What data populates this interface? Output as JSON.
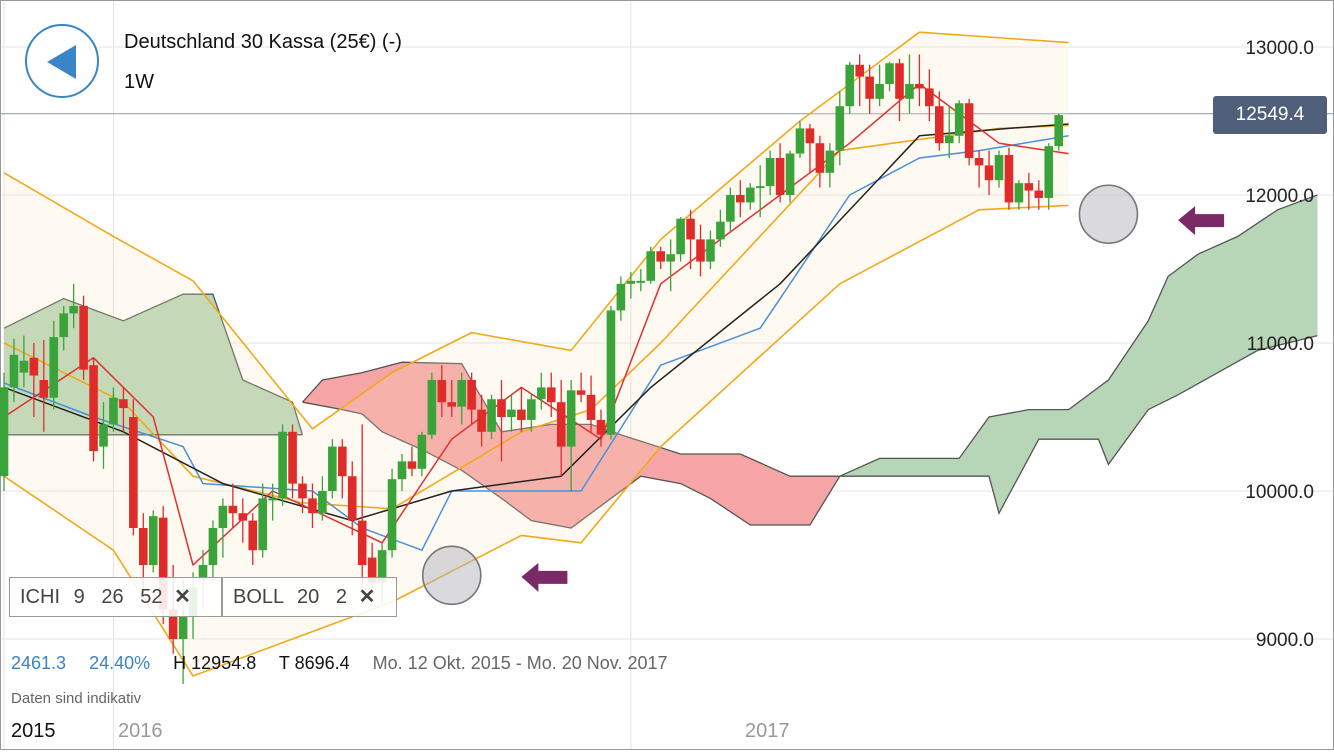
{
  "header": {
    "title": "Deutschland 30 Kassa (25€) (-)",
    "interval": "1W",
    "back_icon": "back-arrow-icon"
  },
  "price_tag": "12549.4",
  "indicators": [
    {
      "name": "ICHI",
      "params": "9   26   52",
      "close": "✕"
    },
    {
      "name": "BOLL",
      "params": "20   2",
      "close": "✕"
    }
  ],
  "stats": {
    "change": "2461.3",
    "change_pct": "24.40%",
    "high": "H 12954.8",
    "low": "T 8696.4",
    "range": "Mo. 12 Okt. 2015 - Mo. 20 Nov. 2017"
  },
  "note": "Daten sind indikativ",
  "colors": {
    "up": "#3aa33a",
    "down": "#e02b2b",
    "boll": "#f0a91b",
    "tenkan": "#e03030",
    "kijun": "#4a90d9",
    "midline": "#222222",
    "cloud_bull": "#b7d6b7",
    "cloud_bear": "#f5a5a5",
    "accent": "#3a85c6",
    "arrow": "#7a2a66"
  },
  "chart_data": {
    "type": "candlestick",
    "y_ticks": [
      "9000.0",
      "10000.0",
      "11000.0",
      "12000.0",
      "13000.0"
    ],
    "y_tick_values": [
      9000,
      10000,
      11000,
      12000,
      13000
    ],
    "ylim": [
      8600,
      13250
    ],
    "x_labels": [
      {
        "label": "2015",
        "index": 0
      },
      {
        "label": "2016",
        "index": 11
      },
      {
        "label": "2017",
        "index": 63
      }
    ],
    "last_price": 12549.4,
    "candles": [
      [
        10100,
        10800,
        10700,
        10000
      ],
      [
        10700,
        11030,
        10920,
        10600
      ],
      [
        10800,
        11050,
        10880,
        10700
      ],
      [
        10900,
        11000,
        10780,
        10500
      ],
      [
        10750,
        11020,
        10630,
        10400
      ],
      [
        10630,
        11150,
        11040,
        10550
      ],
      [
        11040,
        11250,
        11200,
        10950
      ],
      [
        11200,
        11400,
        11250,
        11100
      ],
      [
        11250,
        11320,
        10820,
        10750
      ],
      [
        10850,
        10900,
        10270,
        10200
      ],
      [
        10300,
        10600,
        10450,
        10150
      ],
      [
        10450,
        10700,
        10630,
        10400
      ],
      [
        10620,
        10700,
        10560,
        10400
      ],
      [
        10500,
        10620,
        9750,
        9700
      ],
      [
        9750,
        9850,
        9500,
        9300
      ],
      [
        9500,
        9870,
        9830,
        9450
      ],
      [
        9820,
        9900,
        9200,
        9100
      ],
      [
        9200,
        9500,
        9000,
        8900
      ],
      [
        9000,
        9400,
        9150,
        8696
      ],
      [
        9150,
        9450,
        9350,
        9000
      ],
      [
        9400,
        9600,
        9500,
        9200
      ],
      [
        9500,
        9800,
        9750,
        9400
      ],
      [
        9750,
        9950,
        9900,
        9550
      ],
      [
        9900,
        10050,
        9850,
        9750
      ],
      [
        9850,
        9950,
        9800,
        9650
      ],
      [
        9800,
        9850,
        9600,
        9500
      ],
      [
        9600,
        10050,
        9950,
        9550
      ],
      [
        9950,
        10050,
        9950,
        9800
      ],
      [
        9950,
        10450,
        10400,
        9900
      ],
      [
        10400,
        10450,
        10050,
        9950
      ],
      [
        10050,
        10100,
        9950,
        9850
      ],
      [
        9950,
        10050,
        9850,
        9750
      ],
      [
        9850,
        10100,
        10000,
        9800
      ],
      [
        10000,
        10350,
        10300,
        9950
      ],
      [
        10300,
        10350,
        10100,
        9950
      ],
      [
        10100,
        10200,
        9800,
        9700
      ],
      [
        9800,
        10450,
        9500,
        9300
      ],
      [
        9550,
        9650,
        9380,
        9300
      ],
      [
        9380,
        9650,
        9600,
        9250
      ],
      [
        9600,
        10150,
        10080,
        9550
      ],
      [
        10080,
        10250,
        10200,
        10000
      ],
      [
        10200,
        10300,
        10150,
        10100
      ],
      [
        10150,
        10400,
        10380,
        10100
      ],
      [
        10380,
        10800,
        10750,
        10350
      ],
      [
        10750,
        10850,
        10600,
        10500
      ],
      [
        10600,
        10750,
        10570,
        10500
      ],
      [
        10570,
        10800,
        10750,
        10450
      ],
      [
        10750,
        10800,
        10550,
        10450
      ],
      [
        10550,
        10650,
        10400,
        10300
      ],
      [
        10400,
        10650,
        10620,
        10350
      ],
      [
        10620,
        10750,
        10500,
        10200
      ],
      [
        10500,
        10650,
        10550,
        10400
      ],
      [
        10550,
        10700,
        10480,
        10400
      ],
      [
        10480,
        10650,
        10620,
        10400
      ],
      [
        10620,
        10800,
        10700,
        10550
      ],
      [
        10700,
        10800,
        10600,
        10500
      ],
      [
        10600,
        10750,
        10300,
        10100
      ],
      [
        10300,
        10750,
        10680,
        10000
      ],
      [
        10680,
        10800,
        10650,
        10600
      ],
      [
        10650,
        10780,
        10480,
        10400
      ],
      [
        10480,
        10550,
        10380,
        10300
      ],
      [
        10380,
        11250,
        11220,
        10350
      ],
      [
        11220,
        11450,
        11400,
        11150
      ],
      [
        11400,
        11480,
        11420,
        11300
      ],
      [
        11420,
        11500,
        11420,
        11350
      ],
      [
        11420,
        11650,
        11620,
        11400
      ],
      [
        11620,
        11650,
        11550,
        11500
      ],
      [
        11550,
        11700,
        11600,
        11350
      ],
      [
        11600,
        11850,
        11840,
        11550
      ],
      [
        11840,
        11900,
        11700,
        11500
      ],
      [
        11700,
        11800,
        11550,
        11450
      ],
      [
        11550,
        11760,
        11700,
        11500
      ],
      [
        11700,
        11900,
        11820,
        11650
      ],
      [
        11820,
        12050,
        12000,
        11750
      ],
      [
        12000,
        12100,
        11950,
        11850
      ],
      [
        11950,
        12080,
        12050,
        11900
      ],
      [
        12050,
        12200,
        12060,
        11850
      ],
      [
        12060,
        12300,
        12250,
        12000
      ],
      [
        12250,
        12350,
        12000,
        11950
      ],
      [
        12000,
        12300,
        12280,
        11950
      ],
      [
        12280,
        12500,
        12450,
        12250
      ],
      [
        12450,
        12480,
        12350,
        12150
      ],
      [
        12350,
        12400,
        12150,
        12050
      ],
      [
        12150,
        12350,
        12300,
        12050
      ],
      [
        12300,
        12700,
        12600,
        12200
      ],
      [
        12600,
        12900,
        12880,
        12550
      ],
      [
        12880,
        12950,
        12800,
        12600
      ],
      [
        12800,
        12880,
        12650,
        12550
      ],
      [
        12650,
        12880,
        12750,
        12600
      ],
      [
        12750,
        12900,
        12890,
        12700
      ],
      [
        12890,
        12920,
        12650,
        12500
      ],
      [
        12650,
        12950,
        12750,
        12550
      ],
      [
        12750,
        12950,
        12720,
        12600
      ],
      [
        12720,
        12850,
        12600,
        12500
      ],
      [
        12600,
        12700,
        12350,
        12300
      ],
      [
        12350,
        12600,
        12400,
        12250
      ],
      [
        12400,
        12640,
        12620,
        12350
      ],
      [
        12620,
        12650,
        12250,
        12200
      ],
      [
        12250,
        12300,
        12200,
        12050
      ],
      [
        12200,
        12300,
        12100,
        12000
      ],
      [
        12100,
        12300,
        12270,
        12050
      ],
      [
        12270,
        12320,
        11950,
        11900
      ],
      [
        11950,
        12100,
        12080,
        11900
      ],
      [
        12080,
        12150,
        12030,
        11900
      ],
      [
        12030,
        12100,
        11980,
        11900
      ],
      [
        11980,
        12350,
        12330,
        11900
      ],
      [
        12330,
        12550,
        12540,
        12300
      ]
    ],
    "boll_upper": [
      [
        0,
        12150
      ],
      [
        11,
        11720
      ],
      [
        19,
        11420
      ],
      [
        31,
        10420
      ],
      [
        39,
        10800
      ],
      [
        47,
        11070
      ],
      [
        57,
        10950
      ],
      [
        66,
        11700
      ],
      [
        80,
        12500
      ],
      [
        92,
        13100
      ],
      [
        107,
        13030
      ]
    ],
    "boll_middle": [
      [
        0,
        11000
      ],
      [
        12,
        10600
      ],
      [
        19,
        10100
      ],
      [
        30,
        9920
      ],
      [
        39,
        9880
      ],
      [
        52,
        10400
      ],
      [
        59,
        10550
      ],
      [
        66,
        11000
      ],
      [
        84,
        12300
      ],
      [
        100,
        12450
      ],
      [
        107,
        12470
      ]
    ],
    "boll_lower": [
      [
        0,
        10100
      ],
      [
        11,
        9600
      ],
      [
        19,
        8750
      ],
      [
        31,
        9050
      ],
      [
        39,
        9250
      ],
      [
        52,
        9700
      ],
      [
        58,
        9650
      ],
      [
        66,
        10300
      ],
      [
        84,
        11400
      ],
      [
        98,
        11900
      ],
      [
        107,
        11930
      ]
    ],
    "tenkan": [
      [
        0,
        10500
      ],
      [
        9,
        10900
      ],
      [
        15,
        10500
      ],
      [
        19,
        9500
      ],
      [
        27,
        10000
      ],
      [
        38,
        9650
      ],
      [
        45,
        10350
      ],
      [
        52,
        10700
      ],
      [
        60,
        10350
      ],
      [
        66,
        11400
      ],
      [
        85,
        12350
      ],
      [
        92,
        12750
      ],
      [
        100,
        12350
      ],
      [
        107,
        12280
      ]
    ],
    "kijun": [
      [
        0,
        10730
      ],
      [
        9,
        10500
      ],
      [
        18,
        10300
      ],
      [
        20,
        10050
      ],
      [
        31,
        10000
      ],
      [
        36,
        9750
      ],
      [
        42,
        9600
      ],
      [
        45,
        10000
      ],
      [
        58,
        10000
      ],
      [
        66,
        10850
      ],
      [
        76,
        11100
      ],
      [
        85,
        12000
      ],
      [
        92,
        12250
      ],
      [
        98,
        12300
      ],
      [
        107,
        12400
      ]
    ],
    "midline": [
      [
        0,
        10700
      ],
      [
        12,
        10400
      ],
      [
        22,
        10050
      ],
      [
        35,
        9800
      ],
      [
        45,
        10000
      ],
      [
        56,
        10100
      ],
      [
        65,
        10700
      ],
      [
        78,
        11400
      ],
      [
        92,
        12400
      ],
      [
        101,
        12450
      ],
      [
        107,
        12480
      ]
    ],
    "cloud_bull_1": {
      "top": [
        [
          0,
          11100
        ],
        [
          6,
          11300
        ],
        [
          12,
          11150
        ],
        [
          18,
          11330
        ],
        [
          21,
          11330
        ],
        [
          24,
          10750
        ],
        [
          29,
          10600
        ],
        [
          30,
          10380
        ]
      ],
      "bottom": [
        [
          0,
          10380
        ],
        [
          30,
          10380
        ]
      ]
    },
    "cloud_bear": {
      "top": [
        [
          30,
          10600
        ],
        [
          32,
          10750
        ],
        [
          36,
          10800
        ],
        [
          40,
          10870
        ],
        [
          46,
          10860
        ],
        [
          50,
          10400
        ],
        [
          55,
          10450
        ],
        [
          59,
          10450
        ],
        [
          62,
          10380
        ],
        [
          68,
          10250
        ],
        [
          74,
          10250
        ],
        [
          79,
          10100
        ],
        [
          84,
          10100
        ]
      ],
      "bottom": [
        [
          30,
          10600
        ],
        [
          34,
          10550
        ],
        [
          36,
          10520
        ],
        [
          38,
          10400
        ],
        [
          42,
          10280
        ],
        [
          46,
          10140
        ],
        [
          50,
          9950
        ],
        [
          53,
          9800
        ],
        [
          57,
          9750
        ],
        [
          60,
          9900
        ],
        [
          64,
          10100
        ],
        [
          68,
          10050
        ],
        [
          71,
          9950
        ],
        [
          75,
          9770
        ],
        [
          81,
          9770
        ],
        [
          84,
          10100
        ]
      ]
    },
    "cloud_bull_2": {
      "top": [
        [
          84,
          10100
        ],
        [
          88,
          10220
        ],
        [
          96,
          10220
        ],
        [
          99,
          10500
        ],
        [
          103,
          10550
        ],
        [
          107,
          10550
        ],
        [
          111,
          10750
        ],
        [
          115,
          11150
        ],
        [
          117,
          11450
        ],
        [
          120,
          11600
        ],
        [
          124,
          11720
        ],
        [
          128,
          11900
        ],
        [
          132,
          12000
        ]
      ],
      "bottom": [
        [
          84,
          10100
        ],
        [
          99,
          10100
        ],
        [
          100,
          9850
        ],
        [
          104,
          10350
        ],
        [
          110,
          10350
        ],
        [
          111,
          10180
        ],
        [
          115,
          10550
        ],
        [
          118,
          10650
        ],
        [
          122,
          10800
        ],
        [
          126,
          10950
        ],
        [
          132,
          11050
        ]
      ]
    },
    "circles": [
      [
        45,
        9430
      ],
      [
        111,
        11870
      ]
    ],
    "arrows": [
      [
        52,
        9420
      ],
      [
        118,
        11830
      ]
    ]
  }
}
